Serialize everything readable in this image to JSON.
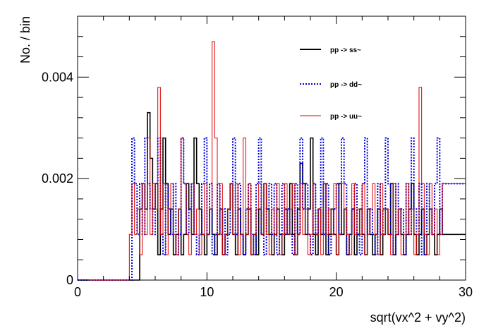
{
  "chart_data": {
    "type": "line",
    "style": "step-histogram",
    "xlabel": "sqrt(vx^2 + vy^2)",
    "ylabel": "No. / bin",
    "xlim": [
      0,
      30
    ],
    "ylim": [
      0,
      0.0052
    ],
    "x_ticks": [
      "0",
      "10",
      "20",
      "30"
    ],
    "y_ticks": [
      "0",
      "0.002",
      "0.004"
    ],
    "grid": false,
    "legend_position": "top-right",
    "bin_width": 0.2,
    "x_start": 3.8,
    "series": [
      {
        "name": "pp -> ss~",
        "color": "#000000",
        "dash": "solid",
        "values": [
          0,
          0,
          0,
          0,
          0,
          0.0014,
          0.0019,
          0.0014,
          0.0033,
          0.0024,
          0.0014,
          0.0019,
          0.0005,
          0.0014,
          0.0028,
          0.0019,
          0.0009,
          0.0014,
          0.0005,
          0.0009,
          0.0014,
          0.0005,
          0.0009,
          0.0019,
          0.0014,
          0.0009,
          0.0028,
          0.0019,
          0.0014,
          0.0009,
          0.0005,
          0.0009,
          0.0014,
          0.0009,
          0.0005,
          0.0009,
          0.0014,
          0.0005,
          0.0009,
          0.0014,
          0.0019,
          0.0009,
          0.0005,
          0.0014,
          0.0009,
          0.0005,
          0.0009,
          0.0014,
          0.0005,
          0.0009,
          0.0005,
          0.0014,
          0.0009,
          0.0019,
          0.0014,
          0.0009,
          0.0005,
          0.0009,
          0.0014,
          0.0009,
          0.0005,
          0.0014,
          0.0009,
          0.0019,
          0.0009,
          0.0005,
          0.0014,
          0.0023,
          0.0019,
          0.0009,
          0.0014,
          0.0028,
          0.0009,
          0.0005,
          0.0014,
          0.0009,
          0.0019,
          0.0005,
          0.0009,
          0.0014,
          0.0009,
          0.0005,
          0.0019,
          0.0009,
          0.0014,
          0.0005,
          0.0009,
          0.0014,
          0.0005,
          0.0009,
          0.0014,
          0.0009,
          0.0005,
          0.0014,
          0.0009,
          0.0005,
          0.0009,
          0.0014,
          0.0005,
          0.0009,
          0.0014,
          0.0009,
          0.0019,
          0.0005,
          0.0009,
          0.0014,
          0.0009,
          0.0005,
          0.0009,
          0.0014,
          0.0019,
          0.0009,
          0.0005,
          0.0009,
          0.0014,
          0.0005,
          0.0009,
          0.0014,
          0.0009,
          0.0005,
          0.0009,
          0.0014,
          0.0009
        ]
      },
      {
        "name": "pp -> dd~",
        "color": "#0000dd",
        "dash": "dotted",
        "values": [
          0,
          0,
          0.0028,
          0.0019,
          0.0009,
          0.0019,
          0.0009,
          0.0028,
          0.0019,
          0.0014,
          0.0009,
          0.0019,
          0.0028,
          0.0009,
          0.0005,
          0.0019,
          0.0014,
          0.0009,
          0.0019,
          0.0005,
          0.0009,
          0.0028,
          0.0019,
          0.0009,
          0.0014,
          0.0019,
          0.0009,
          0.0005,
          0.0009,
          0.0019,
          0.0028,
          0.0009,
          0.0019,
          0.0005,
          0.0009,
          0.0019,
          0.0009,
          0.0014,
          0.0005,
          0.0009,
          0.0019,
          0.0028,
          0.0009,
          0.0019,
          0.0009,
          0.0005,
          0.0014,
          0.0019,
          0.0009,
          0.0005,
          0.0019,
          0.0028,
          0.0009,
          0.0005,
          0.0014,
          0.0019,
          0.0009,
          0.0019,
          0.0005,
          0.0009,
          0.0019,
          0.0009,
          0.0014,
          0.0009,
          0.0005,
          0.0019,
          0.0009,
          0.0028,
          0.0014,
          0.0019,
          0.0009,
          0.0005,
          0.0019,
          0.0009,
          0.0014,
          0.0028,
          0.0009,
          0.0019,
          0.0005,
          0.0009,
          0.0014,
          0.0019,
          0.0009,
          0.0028,
          0.0019,
          0.0005,
          0.0009,
          0.0014,
          0.0019,
          0.0009,
          0.0005,
          0.0019,
          0.0028,
          0.0009,
          0.0014,
          0.0009,
          0.0005,
          0.0019,
          0.0009,
          0.0014,
          0.0028,
          0.0019,
          0.0009,
          0.0005,
          0.0019,
          0.0009,
          0.0014,
          0.0005,
          0.0019,
          0.0009,
          0.0028,
          0.0014,
          0.0009,
          0.0019,
          0.0005,
          0.0009,
          0.0019,
          0.0014,
          0.0009,
          0.0019,
          0.0028,
          0.0009,
          0.0019
        ]
      },
      {
        "name": "pp -> uu~",
        "color": "#dd0000",
        "dash": "solid",
        "values": [
          0,
          0.0009,
          0.0019,
          0.0009,
          0.0014,
          0.0005,
          0.0019,
          0.0009,
          0.0028,
          0.0009,
          0.0019,
          0.0014,
          0.0038,
          0.0009,
          0.0019,
          0.0005,
          0.0014,
          0.0019,
          0.0009,
          0.0005,
          0.0014,
          0.0028,
          0.0019,
          0.0009,
          0.0005,
          0.0019,
          0.0009,
          0.0014,
          0.0005,
          0.0009,
          0.0019,
          0.0009,
          0.0014,
          0.0047,
          0.0028,
          0.0009,
          0.0019,
          0.0005,
          0.0009,
          0.0014,
          0.0019,
          0.0009,
          0.0019,
          0.0005,
          0.0009,
          0.0028,
          0.0009,
          0.0019,
          0.0005,
          0.0009,
          0.0014,
          0.0019,
          0.0009,
          0.0019,
          0.0009,
          0.0005,
          0.0014,
          0.0009,
          0.0019,
          0.0005,
          0.0009,
          0.0019,
          0.0009,
          0.0014,
          0.0019,
          0.0005,
          0.0009,
          0.0019,
          0.0009,
          0.0014,
          0.0005,
          0.0009,
          0.0019,
          0.0009,
          0.0014,
          0.0005,
          0.0019,
          0.0009,
          0.0014,
          0.0009,
          0.0019,
          0.0005,
          0.0009,
          0.0019,
          0.0014,
          0.0009,
          0.0005,
          0.0019,
          0.0009,
          0.0014,
          0.0009,
          0.0019,
          0.0005,
          0.0009,
          0.0014,
          0.0019,
          0.0009,
          0.0005,
          0.0019,
          0.0009,
          0.0014,
          0.0009,
          0.0005,
          0.0019,
          0.0009,
          0.0014,
          0.0005,
          0.0009,
          0.0019,
          0.0009,
          0.0014,
          0.0005,
          0.0009,
          0.0038,
          0.0019,
          0.0009,
          0.0005,
          0.0019,
          0.0009,
          0.0014,
          0.0005,
          0.0009,
          0.0019
        ]
      }
    ]
  }
}
